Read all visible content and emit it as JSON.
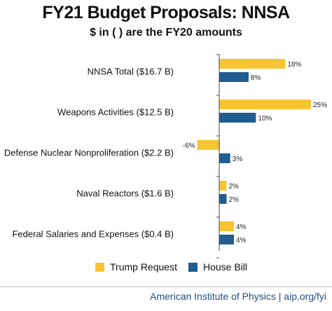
{
  "title": "FY21 Budget Proposals: NNSA",
  "subtitle": "$ in ( ) are the FY20 amounts",
  "colors": {
    "trump": "#f7c531",
    "house": "#1f5d92",
    "axis": "#444444"
  },
  "chart_data": {
    "type": "bar",
    "orientation": "horizontal",
    "categories": [
      "NNSA Total ($16.7 B)",
      "Weapons Activities ($12.5 B)",
      "Defense Nuclear Nonproliferation ($2.2 B)",
      "Naval Reactors ($1.6 B)",
      "Federal Salaries and Expenses ($0.4 B)"
    ],
    "series": [
      {
        "name": "Trump Request",
        "values": [
          18,
          25,
          -6,
          2,
          4
        ],
        "labels": [
          "18%",
          "25%",
          "-6%",
          "2%",
          "4%"
        ]
      },
      {
        "name": "House Bill",
        "values": [
          8,
          10,
          3,
          2,
          4
        ],
        "labels": [
          "8%",
          "10%",
          "3%",
          "2%",
          "4%"
        ]
      }
    ],
    "xlim": [
      -7,
      26
    ],
    "grid": false,
    "legend_position": "bottom"
  },
  "footer": "American Institute of Physics | aip.org/fyi"
}
